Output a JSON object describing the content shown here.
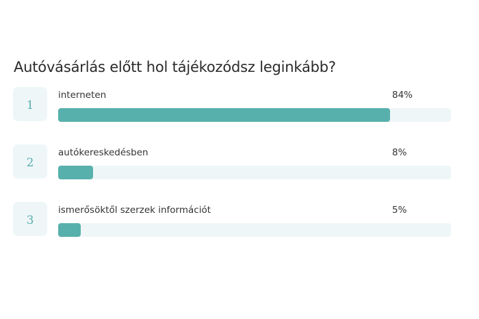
{
  "question": {
    "title": "Autóvásárlás előtt hol tájékozódsz leginkább?"
  },
  "results": [
    {
      "rank": "1",
      "label": "interneten",
      "percent_label": "84%",
      "value": 84,
      "bar_width_pct": 84.5
    },
    {
      "rank": "2",
      "label": "autókereskedésben",
      "percent_label": "8%",
      "value": 8,
      "bar_width_pct": 8.8
    },
    {
      "rank": "3",
      "label": "ismerősöktől szerzek információt",
      "percent_label": "5%",
      "value": 5,
      "bar_width_pct": 5.8
    }
  ],
  "colors": {
    "bar": "#58b0ac",
    "track": "#eef6f8",
    "rank_text": "#5aaeb0"
  },
  "chart_data": {
    "type": "bar",
    "orientation": "horizontal",
    "title": "Autóvásárlás előtt hol tájékozódsz leginkább?",
    "categories": [
      "interneten",
      "autókereskedésben",
      "ismerősöktől szerzek információt"
    ],
    "values": [
      84,
      8,
      5
    ],
    "unit": "%",
    "xlim": [
      0,
      100
    ],
    "grid": false,
    "legend": null
  }
}
